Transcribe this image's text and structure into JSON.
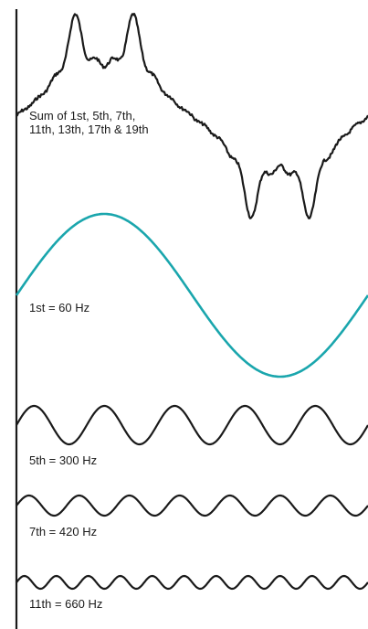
{
  "labels": {
    "sum_line1": "Sum of 1st, 5th, 7th,",
    "sum_line2": "11th, 13th, 17th & 19th",
    "first": "1st = 60 Hz",
    "fifth": "5th = 300 Hz",
    "seventh": "7th = 420 Hz",
    "eleventh": "11th = 660 Hz"
  },
  "colors": {
    "fundamental": "#1aa6ad",
    "harmonic": "#1a1a1a",
    "axis": "#1a1a1a",
    "background": "#ffffff"
  },
  "waves": {
    "fundamental": {
      "order": 1,
      "frequency_hz": 60
    },
    "fifth": {
      "order": 5,
      "frequency_hz": 300
    },
    "seventh": {
      "order": 7,
      "frequency_hz": 420
    },
    "eleventh": {
      "order": 11,
      "frequency_hz": 660
    }
  }
}
